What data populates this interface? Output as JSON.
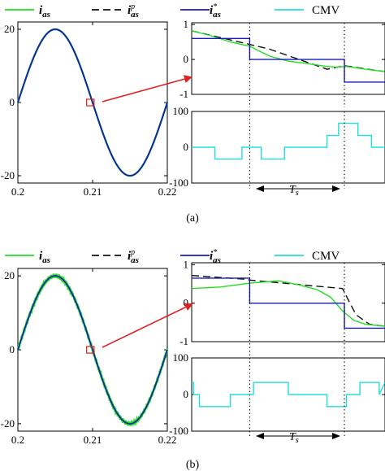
{
  "figure": {
    "panels": [
      {
        "label": "(a)",
        "legend": [
          {
            "id": "ias",
            "text": "i",
            "sub": "as",
            "sup": "",
            "color": "#22dd22",
            "dash": ""
          },
          {
            "id": "iasp",
            "text": "i",
            "sub": "as",
            "sup": "p",
            "color": "#111111",
            "dash": "9,5"
          },
          {
            "id": "iasr",
            "text": "i",
            "sub": "as",
            "sup": "*",
            "color": "#1a1ab8",
            "dash": ""
          },
          {
            "id": "cmv",
            "text": "CMV",
            "sub": "",
            "sup": "",
            "color": "#22dddd",
            "dash": ""
          }
        ]
      },
      {
        "label": "(b)",
        "legend": [
          {
            "id": "ias",
            "text": "i",
            "sub": "as",
            "sup": "",
            "color": "#22dd22",
            "dash": ""
          },
          {
            "id": "iasp",
            "text": "i",
            "sub": "as",
            "sup": "p",
            "color": "#111111",
            "dash": "9,5"
          },
          {
            "id": "iasr",
            "text": "i",
            "sub": "as",
            "sup": "*",
            "color": "#1a1ab8",
            "dash": ""
          },
          {
            "id": "cmv",
            "text": "CMV",
            "sub": "",
            "sup": "",
            "color": "#22dddd",
            "dash": ""
          }
        ]
      }
    ],
    "ts_label": {
      "text": "T",
      "sub": "s"
    },
    "zoom_color": "#e02020"
  },
  "chart_data": [
    {
      "panel": "a-main",
      "type": "line",
      "xlim": [
        0.2,
        0.22
      ],
      "ylim": [
        -22,
        22
      ],
      "xticks": [
        0.2,
        0.21,
        0.22
      ],
      "xtick_labels": [
        "0.2",
        "0.21",
        "0.22"
      ],
      "yticks": [
        20,
        0,
        -20
      ],
      "ytick_labels": [
        "20",
        "0",
        "-20"
      ],
      "series": [
        {
          "name": "i_as",
          "amplitude": 20,
          "frequency": 50,
          "x_start": 0.2,
          "x_end": 0.22,
          "ripple": 0
        }
      ],
      "zoom_box": {
        "x": [
          0.2092,
          0.2102
        ],
        "y": [
          -0.9,
          0.9
        ]
      }
    },
    {
      "panel": "a-current-zoom",
      "type": "line",
      "xlim": [
        0,
        1
      ],
      "ylim": [
        -1,
        1.05
      ],
      "yticks": [
        1,
        0,
        -1
      ],
      "ytick_labels": [
        "1",
        "0",
        "-1"
      ],
      "series": [
        {
          "name": "i_as^p",
          "x": [
            0,
            0.4,
            0.7,
            0.79,
            1
          ],
          "y": [
            0.82,
            0.3,
            -0.28,
            -0.18,
            -0.35
          ]
        },
        {
          "name": "i_as",
          "x": [
            0,
            0.1,
            0.2,
            0.3,
            0.4,
            0.5,
            0.6,
            0.7,
            0.75,
            0.8,
            0.9,
            1
          ],
          "y": [
            0.82,
            0.68,
            0.5,
            0.38,
            0.1,
            -0.05,
            -0.12,
            -0.2,
            -0.22,
            -0.2,
            -0.28,
            -0.35
          ]
        },
        {
          "name": "i_as^*",
          "x": [
            0,
            0.3,
            0.3,
            0.79,
            0.79,
            1
          ],
          "y": [
            0.6,
            0.6,
            0,
            0,
            -0.65,
            -0.65
          ]
        }
      ],
      "markers_x": [
        0.3,
        0.79
      ]
    },
    {
      "panel": "a-cmv-zoom",
      "type": "line",
      "xlim": [
        0,
        1
      ],
      "ylim": [
        -100,
        100
      ],
      "yticks": [
        100,
        0,
        -100
      ],
      "ytick_labels": [
        "100",
        "0",
        "-100"
      ],
      "series": [
        {
          "name": "CMV",
          "x": [
            0,
            0.12,
            0.12,
            0.26,
            0.26,
            0.36,
            0.36,
            0.48,
            0.48,
            0.7,
            0.7,
            0.76,
            0.76,
            0.86,
            0.86,
            0.93,
            0.93,
            1
          ],
          "y": [
            0,
            0,
            -33,
            -33,
            0,
            0,
            -33,
            -33,
            0,
            0,
            33,
            33,
            67,
            67,
            33,
            33,
            0,
            0
          ]
        }
      ],
      "markers_x": [
        0.3,
        0.79
      ]
    },
    {
      "panel": "b-main",
      "type": "line",
      "xlim": [
        0.2,
        0.22
      ],
      "ylim": [
        -22,
        22
      ],
      "xticks": [
        0.2,
        0.21,
        0.22
      ],
      "xtick_labels": [
        "0.2",
        "0.21",
        "0.22"
      ],
      "yticks": [
        20,
        0,
        -20
      ],
      "ytick_labels": [
        "20",
        "0",
        "-20"
      ],
      "series": [
        {
          "name": "i_as",
          "amplitude": 20,
          "frequency": 50,
          "x_start": 0.2,
          "x_end": 0.22,
          "ripple": 0.6
        }
      ],
      "zoom_box": {
        "x": [
          0.2092,
          0.2102
        ],
        "y": [
          -0.9,
          0.9
        ]
      }
    },
    {
      "panel": "b-current-zoom",
      "type": "line",
      "xlim": [
        0,
        1
      ],
      "ylim": [
        -1,
        1.05
      ],
      "yticks": [
        1,
        0,
        -1
      ],
      "ytick_labels": [
        "1",
        "0",
        "-1"
      ],
      "series": [
        {
          "name": "i_as^p",
          "x": [
            0,
            0.28,
            0.3,
            0.78,
            0.85,
            0.92,
            1
          ],
          "y": [
            0.72,
            0.62,
            0.6,
            0.38,
            -0.3,
            -0.55,
            -0.6
          ]
        },
        {
          "name": "i_as",
          "x": [
            0,
            0.15,
            0.3,
            0.45,
            0.55,
            0.65,
            0.72,
            0.78,
            0.84,
            0.9,
            1
          ],
          "y": [
            0.38,
            0.42,
            0.52,
            0.58,
            0.48,
            0.35,
            0.15,
            -0.2,
            -0.45,
            -0.55,
            -0.6
          ]
        },
        {
          "name": "i_as^*",
          "x": [
            0,
            0.3,
            0.3,
            0.79,
            0.79,
            1
          ],
          "y": [
            0.65,
            0.65,
            0,
            0,
            -0.65,
            -0.65
          ]
        }
      ],
      "markers_x": [
        0.3,
        0.79
      ]
    },
    {
      "panel": "b-cmv-zoom",
      "type": "line",
      "xlim": [
        0,
        1
      ],
      "ylim": [
        -100,
        100
      ],
      "yticks": [
        100,
        0,
        -100
      ],
      "ytick_labels": [
        "100",
        "0",
        "-100"
      ],
      "series": [
        {
          "name": "CMV",
          "x": [
            0,
            0.01,
            0.01,
            0.04,
            0.04,
            0.2,
            0.2,
            0.32,
            0.32,
            0.5,
            0.5,
            0.7,
            0.7,
            0.8,
            0.8,
            0.87,
            0.87,
            0.97,
            0.97,
            1
          ],
          "y": [
            33,
            33,
            0,
            0,
            -33,
            -33,
            0,
            0,
            33,
            33,
            0,
            0,
            -33,
            -33,
            0,
            0,
            33,
            33,
            0,
            33
          ]
        }
      ],
      "markers_x": [
        0.3,
        0.79
      ]
    }
  ]
}
